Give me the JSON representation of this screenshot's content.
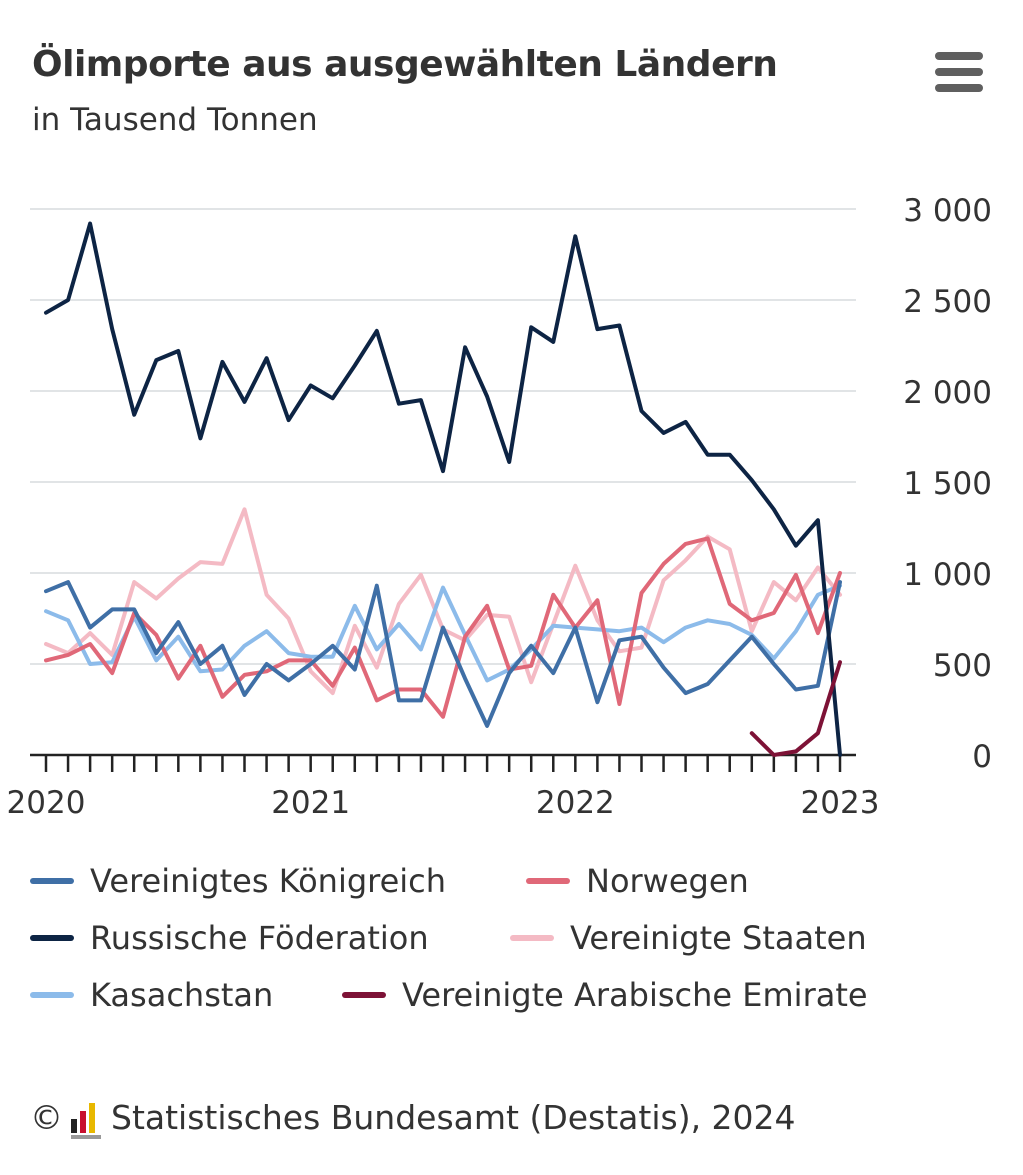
{
  "title": "Ölimporte aus ausgewählten Ländern",
  "subtitle": "in Tausend Tonnen",
  "menu": {
    "icon": "hamburger-menu-icon"
  },
  "credit": {
    "copyright": "©",
    "logo_icon": "destatis-logo-icon",
    "text": "Statistisches Bundesamt (Destatis), 2024"
  },
  "chart_data": {
    "type": "line",
    "title": "Ölimporte aus ausgewählten Ländern",
    "subtitle": "in Tausend Tonnen",
    "x_ticks": [
      "2020",
      "2021",
      "2022",
      "2023"
    ],
    "y_ticks": [
      "3 000",
      "2 500",
      "2 000",
      "1 500",
      "1 000",
      "500",
      "0"
    ],
    "y_tick_values": [
      3000,
      2500,
      2000,
      1500,
      1000,
      500,
      0
    ],
    "ylim": [
      0,
      3000
    ],
    "x_range": [
      "2020-01",
      "2023-01"
    ],
    "grid": true,
    "y_axis_position": "right",
    "legend_position": "bottom",
    "series": [
      {
        "name": "Vereinigtes Königreich",
        "color": "#3f6fa6",
        "start": "2020-01",
        "values": [
          900,
          950,
          700,
          800,
          800,
          560,
          730,
          500,
          600,
          330,
          500,
          410,
          500,
          600,
          470,
          930,
          300,
          300,
          700,
          420,
          160,
          450,
          600,
          450,
          700,
          290,
          630,
          650,
          480,
          340,
          390,
          520,
          650,
          500,
          360,
          380,
          950
        ]
      },
      {
        "name": "Russische Föderation",
        "color": "#0d2444",
        "start": "2020-01",
        "values": [
          2430,
          2500,
          2920,
          2340,
          1870,
          2170,
          2220,
          1740,
          2160,
          1940,
          2180,
          1840,
          2030,
          1960,
          2140,
          2330,
          1930,
          1950,
          1560,
          2240,
          1970,
          1610,
          2350,
          2270,
          2850,
          2340,
          2360,
          1890,
          1770,
          1830,
          1650,
          1650,
          1510,
          1350,
          1150,
          1290,
          0
        ]
      },
      {
        "name": "Kasachstan",
        "color": "#8cbbea",
        "start": "2020-01",
        "values": [
          790,
          740,
          500,
          510,
          760,
          520,
          650,
          460,
          470,
          600,
          680,
          560,
          540,
          540,
          820,
          580,
          720,
          580,
          920,
          660,
          410,
          470,
          580,
          710,
          700,
          690,
          680,
          700,
          620,
          700,
          740,
          720,
          660,
          530,
          680,
          880,
          930
        ]
      },
      {
        "name": "Norwegen",
        "color": "#e06878",
        "start": "2020-01",
        "values": [
          520,
          550,
          610,
          450,
          780,
          660,
          420,
          600,
          320,
          440,
          460,
          520,
          520,
          380,
          590,
          300,
          360,
          360,
          210,
          650,
          820,
          470,
          490,
          880,
          700,
          850,
          280,
          890,
          1050,
          1160,
          1190,
          830,
          740,
          780,
          990,
          670,
          1000
        ]
      },
      {
        "name": "Vereinigte Staaten",
        "color": "#f4bac4",
        "start": "2020-01",
        "values": [
          610,
          560,
          670,
          550,
          950,
          860,
          970,
          1060,
          1050,
          1350,
          880,
          750,
          460,
          340,
          710,
          480,
          830,
          990,
          690,
          630,
          770,
          760,
          400,
          720,
          1040,
          740,
          570,
          590,
          960,
          1070,
          1200,
          1130,
          680,
          950,
          850,
          1030,
          880
        ]
      },
      {
        "name": "Vereinigte Arabische Emirate",
        "color": "#7d1236",
        "start": "2022-09",
        "values": [
          120,
          0,
          20,
          120,
          510
        ]
      }
    ]
  }
}
